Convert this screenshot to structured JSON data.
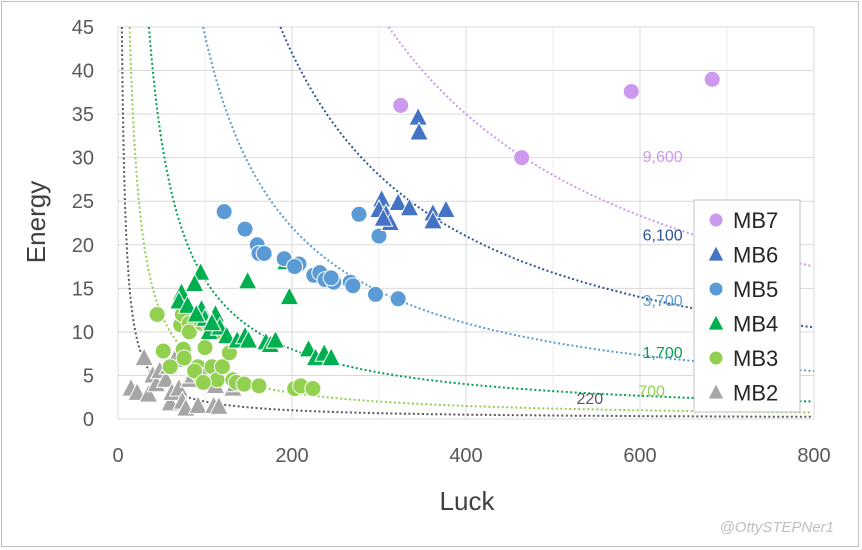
{
  "watermark": "@OttySTEPNer1",
  "chart_data": {
    "type": "scatter",
    "title": "",
    "xlabel": "Luck",
    "ylabel": "Energy",
    "xlim": [
      0,
      800
    ],
    "ylim": [
      0,
      45
    ],
    "xticks": [
      0,
      200,
      400,
      600,
      800
    ],
    "yticks": [
      0,
      5,
      10,
      15,
      20,
      25,
      30,
      35,
      40,
      45
    ],
    "grid": true,
    "legend_position": "right",
    "curves": [
      {
        "label": "9,600",
        "k": 14000,
        "color": "#cc99ee",
        "label_at": [
          603,
          29.5
        ]
      },
      {
        "label": "6,100",
        "k": 8400,
        "color": "#2f5597",
        "label_at": [
          603,
          20.5
        ]
      },
      {
        "label": "3,700",
        "k": 4400,
        "color": "#5b9bd5",
        "label_at": [
          603,
          13
        ]
      },
      {
        "label": "1,700",
        "k": 1600,
        "color": "#00a050",
        "label_at": [
          603,
          7
        ]
      },
      {
        "label": "700",
        "k": 600,
        "color": "#92d050",
        "label_at": [
          598,
          2.6
        ]
      },
      {
        "label": "220",
        "k": 200,
        "color": "#595959",
        "label_at": [
          527,
          1.7
        ]
      }
    ],
    "series": [
      {
        "name": "MB7",
        "marker": "circle",
        "color": "#cc99ee",
        "points": [
          [
            325,
            36
          ],
          [
            464,
            30
          ],
          [
            590,
            37.6
          ],
          [
            683,
            39
          ]
        ]
      },
      {
        "name": "MB6",
        "marker": "triangle",
        "color": "#4472c4",
        "points": [
          [
            303,
            25.2
          ],
          [
            322,
            24.8
          ],
          [
            335,
            24.2
          ],
          [
            345,
            34.6
          ],
          [
            346,
            32.9
          ],
          [
            362,
            23.6
          ],
          [
            362,
            22.7
          ],
          [
            377,
            24
          ],
          [
            300,
            24
          ],
          [
            308,
            23.5
          ],
          [
            313,
            22.5
          ],
          [
            305,
            23
          ]
        ]
      },
      {
        "name": "MB5",
        "marker": "circle",
        "color": "#5b9bd5",
        "points": [
          [
            122,
            23.8
          ],
          [
            146,
            21.8
          ],
          [
            160,
            20
          ],
          [
            162,
            19
          ],
          [
            168,
            19
          ],
          [
            191,
            18.4
          ],
          [
            208,
            17.8
          ],
          [
            225,
            16.5
          ],
          [
            232,
            16.8
          ],
          [
            238,
            16
          ],
          [
            248,
            15.7
          ],
          [
            267,
            15.7
          ],
          [
            270,
            15.3
          ],
          [
            277,
            23.5
          ],
          [
            296,
            14.3
          ],
          [
            300,
            21
          ],
          [
            322,
            13.8
          ],
          [
            203,
            17.5
          ],
          [
            245,
            16.2
          ]
        ]
      },
      {
        "name": "MB4",
        "marker": "triangle",
        "color": "#00b050",
        "points": [
          [
            73,
            14.5
          ],
          [
            70,
            13.5
          ],
          [
            95,
            16.8
          ],
          [
            88,
            15.5
          ],
          [
            96,
            12.6
          ],
          [
            100,
            11.5
          ],
          [
            105,
            10
          ],
          [
            112,
            12
          ],
          [
            117,
            10.5
          ],
          [
            125,
            9.5
          ],
          [
            137,
            9
          ],
          [
            149,
            15.8
          ],
          [
            146,
            9.5
          ],
          [
            150,
            9
          ],
          [
            170,
            8.8
          ],
          [
            175,
            8.5
          ],
          [
            181,
            9
          ],
          [
            193,
            18
          ],
          [
            197,
            14
          ],
          [
            219,
            8
          ],
          [
            227,
            7
          ],
          [
            237,
            7.5
          ],
          [
            245,
            7
          ],
          [
            80,
            13
          ],
          [
            90,
            12
          ],
          [
            108,
            11
          ]
        ]
      },
      {
        "name": "MB3",
        "marker": "circle",
        "color": "#92d050",
        "points": [
          [
            45,
            12
          ],
          [
            52,
            7.8
          ],
          [
            60,
            6
          ],
          [
            72,
            10.8
          ],
          [
            74,
            12
          ],
          [
            75,
            8
          ],
          [
            76,
            7
          ],
          [
            82,
            11
          ],
          [
            82,
            10
          ],
          [
            92,
            6
          ],
          [
            94,
            5
          ],
          [
            96,
            11
          ],
          [
            100,
            8.2
          ],
          [
            105,
            10.8
          ],
          [
            108,
            6
          ],
          [
            114,
            4.5
          ],
          [
            120,
            6
          ],
          [
            128,
            7.6
          ],
          [
            132,
            4.5
          ],
          [
            136,
            4.2
          ],
          [
            145,
            4
          ],
          [
            162,
            3.8
          ],
          [
            203,
            3.5
          ],
          [
            210,
            3.8
          ],
          [
            224,
            3.5
          ],
          [
            88,
            5.5
          ],
          [
            118,
            10
          ],
          [
            98,
            4.2
          ]
        ]
      },
      {
        "name": "MB2",
        "marker": "triangle",
        "color": "#a6a6a6",
        "points": [
          [
            15,
            3.5
          ],
          [
            22,
            3
          ],
          [
            30,
            7
          ],
          [
            35,
            2.8
          ],
          [
            40,
            5
          ],
          [
            44,
            4
          ],
          [
            48,
            5.5
          ],
          [
            55,
            4.5
          ],
          [
            58,
            6
          ],
          [
            60,
            1.8
          ],
          [
            62,
            3
          ],
          [
            65,
            6.8
          ],
          [
            70,
            3.5
          ],
          [
            74,
            2
          ],
          [
            78,
            1.2
          ],
          [
            82,
            4.5
          ],
          [
            86,
            5
          ],
          [
            92,
            1.5
          ],
          [
            110,
            1.5
          ],
          [
            112,
            3.8
          ],
          [
            116,
            1.4
          ],
          [
            132,
            3.5
          ],
          [
            135,
            4
          ]
        ]
      }
    ]
  }
}
